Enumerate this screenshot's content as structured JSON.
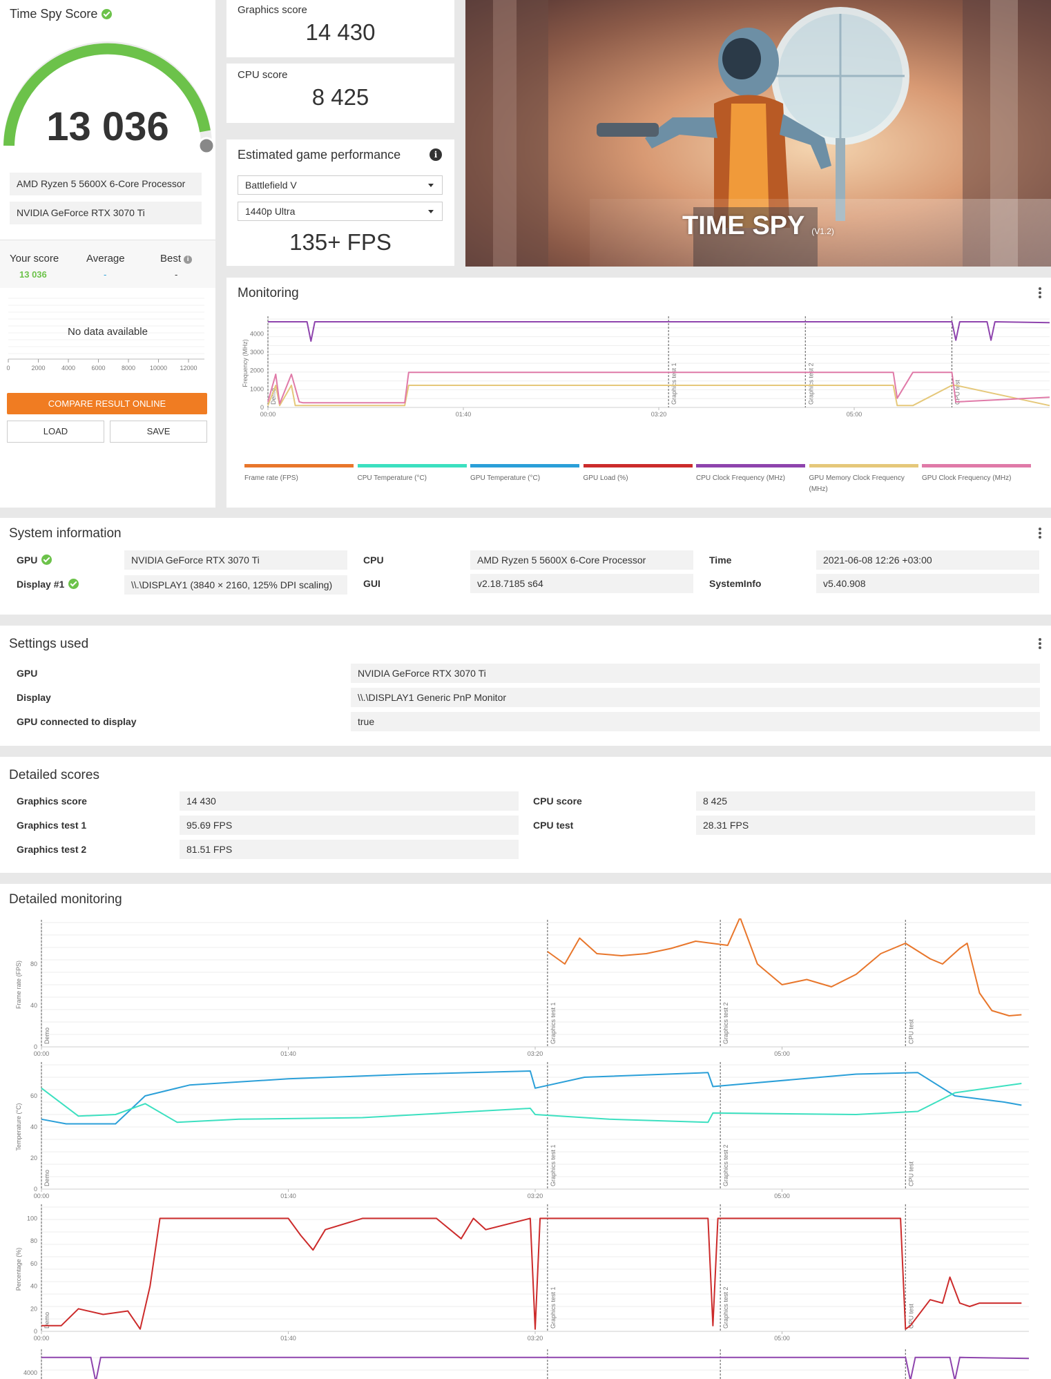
{
  "score": {
    "title": "Time Spy Score",
    "value": "13 036",
    "gauge_fraction": 0.98,
    "cpu": "AMD Ryzen 5 5600X 6-Core Processor",
    "gpu": "NVIDIA GeForce RTX 3070 Ti",
    "your_label": "Your score",
    "your_value": "13 036",
    "avg_label": "Average",
    "avg_value": "-",
    "best_label": "Best",
    "best_value": "-",
    "no_data": "No data available",
    "dist_ticks": [
      "0",
      "2000",
      "4000",
      "6000",
      "8000",
      "10000",
      "12000"
    ],
    "compare_btn": "COMPARE RESULT ONLINE",
    "load_btn": "LOAD",
    "save_btn": "SAVE"
  },
  "graphics": {
    "label": "Graphics score",
    "value": "14 430"
  },
  "cpu_score": {
    "label": "CPU score",
    "value": "8 425"
  },
  "estimate": {
    "title": "Estimated game performance",
    "game": "Battlefield V",
    "preset": "1440p Ultra",
    "fps": "135+ FPS"
  },
  "hero": {
    "title": "TIME SPY",
    "version": "(V1.2)"
  },
  "monitoring": {
    "title": "Monitoring",
    "ylabel": "Frequency (MHz)",
    "yticks": [
      "0",
      "1000",
      "2000",
      "3000",
      "4000"
    ],
    "xticks": [
      "00:00",
      "01:40",
      "03:20",
      "05:00"
    ],
    "markers": [
      "Demo",
      "Graphics test 1",
      "Graphics test 2",
      "CPU test"
    ],
    "legend": [
      {
        "name": "Frame rate (FPS)",
        "color": "#e8762b"
      },
      {
        "name": "CPU Temperature (°C)",
        "color": "#3ce0c0"
      },
      {
        "name": "GPU Temperature (°C)",
        "color": "#2a9fd8"
      },
      {
        "name": "GPU Load (%)",
        "color": "#cc2b2b"
      },
      {
        "name": "CPU Clock Frequency (MHz)",
        "color": "#8e44ad"
      },
      {
        "name": "GPU Memory Clock Frequency (MHz)",
        "color": "#e5c87a"
      },
      {
        "name": "GPU Clock Frequency (MHz)",
        "color": "#e07aa8"
      }
    ]
  },
  "sysinfo": {
    "title": "System information",
    "gpu_label": "GPU",
    "gpu_value": "NVIDIA GeForce RTX 3070 Ti",
    "display_label": "Display #1",
    "display_value": "\\\\.\\DISPLAY1 (3840 × 2160, 125% DPI scaling)",
    "cpu_label": "CPU",
    "cpu_value": "AMD Ryzen 5 5600X 6-Core Processor",
    "gui_label": "GUI",
    "gui_value": "v2.18.7185 s64",
    "time_label": "Time",
    "time_value": "2021-06-08 12:26 +03:00",
    "si_label": "SystemInfo",
    "si_value": "v5.40.908"
  },
  "settings": {
    "title": "Settings used",
    "rows": [
      {
        "label": "GPU",
        "value": "NVIDIA GeForce RTX 3070 Ti"
      },
      {
        "label": "Display",
        "value": "\\\\.\\DISPLAY1 Generic PnP Monitor"
      },
      {
        "label": "GPU connected to display",
        "value": "true"
      }
    ]
  },
  "detailed": {
    "title": "Detailed scores",
    "left": [
      {
        "label": "Graphics score",
        "value": "14 430"
      },
      {
        "label": "Graphics test 1",
        "value": "95.69 FPS"
      },
      {
        "label": "Graphics test 2",
        "value": "81.51 FPS"
      }
    ],
    "right": [
      {
        "label": "CPU score",
        "value": "8 425"
      },
      {
        "label": "CPU test",
        "value": "28.31 FPS"
      }
    ]
  },
  "detailed_monitoring": {
    "title": "Detailed monitoring",
    "charts": [
      {
        "ylabel": "Frame rate (FPS)",
        "yticks": [
          "0",
          "40",
          "80"
        ]
      },
      {
        "ylabel": "Temperature (°C)",
        "yticks": [
          "0",
          "20",
          "40",
          "60"
        ]
      },
      {
        "ylabel": "Percentage (%)",
        "yticks": [
          "0",
          "20",
          "40",
          "60",
          "80",
          "100"
        ]
      },
      {
        "ylabel": "",
        "yticks": [
          "4000"
        ]
      }
    ],
    "xticks": [
      "00:00",
      "01:40",
      "03:20",
      "05:00"
    ]
  },
  "chart_data": [
    {
      "type": "line",
      "title": "Monitoring",
      "ylabel": "Frequency (MHz)",
      "ylim": [
        0,
        4800
      ],
      "xlim": [
        0,
        400
      ],
      "x_ticks": [
        "00:00",
        "01:40",
        "03:20",
        "05:00"
      ],
      "series": [
        {
          "name": "CPU Clock Frequency (MHz)",
          "color": "#8e44ad",
          "x": [
            0,
            20,
            22,
            24,
            100,
            200,
            300,
            350,
            352,
            354,
            368,
            370,
            372,
            400
          ],
          "values": [
            4650,
            4650,
            3600,
            4650,
            4650,
            4650,
            4650,
            4650,
            3650,
            4650,
            4650,
            3650,
            4650,
            4600
          ]
        },
        {
          "name": "GPU Memory Clock Frequency (MHz)",
          "color": "#e5c87a",
          "x": [
            0,
            4,
            6,
            12,
            14,
            16,
            70,
            72,
            320,
            322,
            330,
            350,
            352,
            400
          ],
          "values": [
            100,
            1200,
            100,
            1200,
            100,
            100,
            100,
            1200,
            1200,
            100,
            100,
            1200,
            1200,
            100
          ]
        },
        {
          "name": "GPU Clock Frequency (MHz)",
          "color": "#e07aa8",
          "x": [
            0,
            4,
            6,
            12,
            16,
            18,
            70,
            72,
            320,
            322,
            330,
            350,
            352,
            400
          ],
          "values": [
            300,
            1800,
            200,
            1800,
            300,
            250,
            250,
            1900,
            1900,
            500,
            1900,
            1900,
            300,
            550
          ]
        }
      ]
    },
    {
      "type": "line",
      "ylabel": "Frame rate (FPS)",
      "ylim": [
        0,
        120
      ],
      "xlim": [
        0,
        400
      ],
      "series": [
        {
          "name": "Frame rate (FPS)",
          "color": "#e8762b",
          "x": [
            205,
            212,
            218,
            225,
            235,
            245,
            255,
            265,
            278,
            283,
            290,
            300,
            310,
            320,
            330,
            340,
            350,
            360,
            365,
            372,
            375,
            380,
            385,
            392,
            397
          ],
          "values": [
            92,
            80,
            105,
            90,
            88,
            90,
            95,
            102,
            98,
            125,
            80,
            60,
            65,
            58,
            70,
            90,
            100,
            85,
            80,
            95,
            100,
            52,
            35,
            30,
            31
          ]
        }
      ]
    },
    {
      "type": "line",
      "ylabel": "Temperature (°C)",
      "ylim": [
        0,
        80
      ],
      "xlim": [
        0,
        400
      ],
      "series": [
        {
          "name": "GPU Temperature (°C)",
          "color": "#2a9fd8",
          "x": [
            0,
            10,
            30,
            42,
            60,
            100,
            150,
            198,
            200,
            220,
            270,
            272,
            330,
            355,
            370,
            390,
            397
          ],
          "values": [
            45,
            42,
            42,
            60,
            67,
            71,
            74,
            76,
            65,
            72,
            75,
            66,
            74,
            75,
            60,
            56,
            54
          ]
        },
        {
          "name": "CPU Temperature (°C)",
          "color": "#3ce0c0",
          "x": [
            0,
            15,
            30,
            42,
            55,
            80,
            130,
            198,
            200,
            230,
            270,
            272,
            330,
            355,
            370,
            397
          ],
          "values": [
            65,
            47,
            48,
            55,
            43,
            45,
            46,
            52,
            48,
            45,
            43,
            49,
            48,
            50,
            62,
            68
          ]
        }
      ]
    },
    {
      "type": "line",
      "ylabel": "Percentage (%)",
      "ylim": [
        0,
        110
      ],
      "xlim": [
        0,
        400
      ],
      "series": [
        {
          "name": "GPU Load (%)",
          "color": "#cc2b2b",
          "x": [
            0,
            8,
            15,
            25,
            35,
            40,
            44,
            48,
            100,
            105,
            110,
            115,
            130,
            160,
            170,
            175,
            180,
            198,
            200,
            202,
            270,
            272,
            274,
            348,
            350,
            352,
            360,
            365,
            368,
            372,
            376,
            380,
            397
          ],
          "values": [
            5,
            5,
            20,
            15,
            18,
            2,
            40,
            100,
            100,
            85,
            72,
            90,
            100,
            100,
            82,
            100,
            90,
            100,
            2,
            100,
            100,
            5,
            100,
            100,
            2,
            5,
            28,
            25,
            48,
            25,
            22,
            25,
            25
          ]
        }
      ]
    }
  ]
}
